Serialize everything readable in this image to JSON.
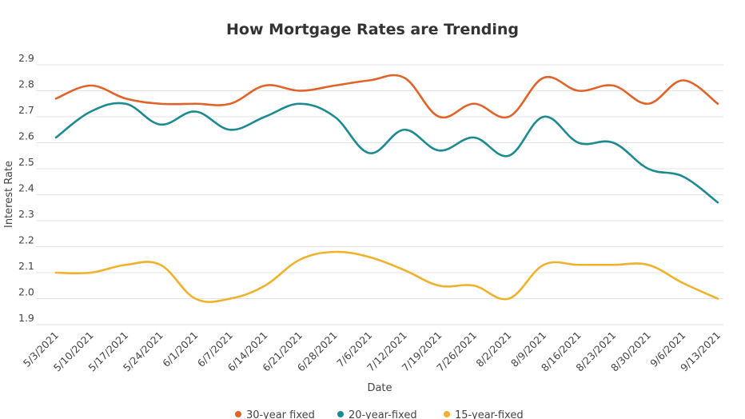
{
  "chart_data": {
    "type": "line",
    "title": "How Mortgage Rates are Trending",
    "xlabel": "Date",
    "ylabel": "Interest Rate",
    "ylim": [
      1.9,
      2.9
    ],
    "yticks": [
      "2.9",
      "2.8",
      "2.7",
      "2.6",
      "2.5",
      "2.4",
      "2.3",
      "2.2",
      "2.1",
      "2.0",
      "1.9"
    ],
    "grid": true,
    "legend_position": "bottom",
    "categories": [
      "5/3/2021",
      "5/10/2021",
      "5/17/2021",
      "5/24/2021",
      "6/1/2021",
      "6/7/2021",
      "6/14/2021",
      "6/21/2021",
      "6/28/2021",
      "7/6/2021",
      "7/12/2021",
      "7/19/2021",
      "7/26/2021",
      "8/2/2021",
      "8/9/2021",
      "8/16/2021",
      "8/23/2021",
      "8/30/2021",
      "9/6/2021",
      "9/13/2021"
    ],
    "series": [
      {
        "name": "30-year fixed",
        "color": "#e0632a",
        "values": [
          2.77,
          2.82,
          2.77,
          2.75,
          2.75,
          2.75,
          2.82,
          2.8,
          2.82,
          2.84,
          2.85,
          2.7,
          2.75,
          2.7,
          2.85,
          2.8,
          2.82,
          2.75,
          2.84,
          2.75
        ]
      },
      {
        "name": "20-year-fixed",
        "color": "#1b8a91",
        "values": [
          2.62,
          2.72,
          2.75,
          2.67,
          2.72,
          2.65,
          2.7,
          2.75,
          2.7,
          2.56,
          2.65,
          2.57,
          2.62,
          2.55,
          2.7,
          2.6,
          2.6,
          2.5,
          2.47,
          2.37
        ]
      },
      {
        "name": "15-year-fixed",
        "color": "#f0b12b",
        "values": [
          2.1,
          2.1,
          2.13,
          2.13,
          2.0,
          2.0,
          2.05,
          2.15,
          2.18,
          2.16,
          2.11,
          2.05,
          2.05,
          2.0,
          2.13,
          2.13,
          2.13,
          2.13,
          2.06,
          2.0
        ]
      }
    ]
  }
}
